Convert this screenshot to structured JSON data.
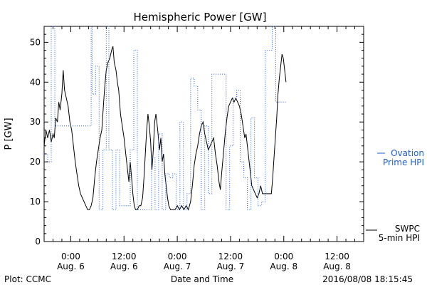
{
  "chart_data": {
    "type": "line",
    "title": "Hemispheric Power [GW]",
    "xlabel": "Date and Time",
    "ylabel": "P [GW]",
    "x_unit": "hours since 2016-08-05 18:00 UTC",
    "xlim": [
      0,
      72
    ],
    "ylim": [
      0,
      54
    ],
    "yticks": [
      0,
      10,
      20,
      30,
      40,
      50
    ],
    "xticks": [
      {
        "x": 6,
        "time": "0:00",
        "date": "Aug. 6"
      },
      {
        "x": 18,
        "time": "12:00",
        "date": "Aug. 6"
      },
      {
        "x": 30,
        "time": "0:00",
        "date": "Aug. 7"
      },
      {
        "x": 42,
        "time": "12:00",
        "date": "Aug. 7"
      },
      {
        "x": 54,
        "time": "0:00",
        "date": "Aug. 8"
      },
      {
        "x": 66,
        "time": "12:00",
        "date": "Aug. 8"
      }
    ],
    "series": [
      {
        "name": "SWPC 5-min HPI",
        "legend_lines": [
          "SWPC",
          "5-min HPI"
        ],
        "color": "#000000",
        "style": "solid",
        "points": [
          [
            0,
            24
          ],
          [
            0.4,
            28
          ],
          [
            0.8,
            26
          ],
          [
            1.2,
            28
          ],
          [
            1.6,
            25
          ],
          [
            2,
            27
          ],
          [
            2.3,
            26
          ],
          [
            2.6,
            31
          ],
          [
            3.0,
            30
          ],
          [
            3.3,
            35
          ],
          [
            3.6,
            33
          ],
          [
            4.0,
            37
          ],
          [
            4.3,
            43
          ],
          [
            4.6,
            38
          ],
          [
            5.0,
            36
          ],
          [
            5.4,
            34
          ],
          [
            5.8,
            30
          ],
          [
            6.2,
            28
          ],
          [
            6.6,
            24
          ],
          [
            7.0,
            20
          ],
          [
            7.4,
            17
          ],
          [
            7.8,
            14
          ],
          [
            8.2,
            12
          ],
          [
            8.6,
            11
          ],
          [
            9.0,
            10
          ],
          [
            9.4,
            9
          ],
          [
            9.8,
            8
          ],
          [
            10.2,
            8
          ],
          [
            10.6,
            9
          ],
          [
            11.0,
            11
          ],
          [
            11.4,
            16
          ],
          [
            11.8,
            20
          ],
          [
            12.2,
            23
          ],
          [
            12.6,
            26
          ],
          [
            13.0,
            28
          ],
          [
            13.3,
            33
          ],
          [
            13.6,
            38
          ],
          [
            14.0,
            43
          ],
          [
            14.4,
            45
          ],
          [
            14.8,
            46
          ],
          [
            15.2,
            48
          ],
          [
            15.5,
            49
          ],
          [
            15.8,
            45
          ],
          [
            16.2,
            43
          ],
          [
            16.5,
            40
          ],
          [
            16.8,
            38
          ],
          [
            17.2,
            32
          ],
          [
            17.6,
            29
          ],
          [
            18.0,
            26
          ],
          [
            18.4,
            22
          ],
          [
            18.8,
            18
          ],
          [
            19.1,
            15
          ],
          [
            19.4,
            20
          ],
          [
            19.7,
            16
          ],
          [
            20.0,
            12
          ],
          [
            20.3,
            9
          ],
          [
            20.6,
            8
          ],
          [
            21.0,
            8
          ],
          [
            21.4,
            9
          ],
          [
            21.8,
            9
          ],
          [
            22.2,
            11
          ],
          [
            22.5,
            16
          ],
          [
            22.8,
            22
          ],
          [
            23.1,
            28
          ],
          [
            23.4,
            32
          ],
          [
            23.7,
            29
          ],
          [
            24.0,
            25
          ],
          [
            24.3,
            18
          ],
          [
            24.6,
            23
          ],
          [
            24.9,
            30
          ],
          [
            25.2,
            32
          ],
          [
            25.6,
            28
          ],
          [
            26.0,
            23
          ],
          [
            26.3,
            26
          ],
          [
            26.6,
            20
          ],
          [
            26.9,
            22
          ],
          [
            27.2,
            17
          ],
          [
            27.5,
            14
          ],
          [
            27.8,
            11
          ],
          [
            28.1,
            9
          ],
          [
            28.5,
            8
          ],
          [
            29.0,
            8
          ],
          [
            29.5,
            8
          ],
          [
            30.0,
            9
          ],
          [
            30.5,
            8
          ],
          [
            31.0,
            9
          ],
          [
            31.5,
            8
          ],
          [
            32.0,
            9
          ],
          [
            32.5,
            8
          ],
          [
            33.0,
            10
          ],
          [
            33.4,
            14
          ],
          [
            33.8,
            19
          ],
          [
            34.2,
            22
          ],
          [
            34.6,
            24
          ],
          [
            35.0,
            27
          ],
          [
            35.4,
            29
          ],
          [
            35.8,
            30
          ],
          [
            36.2,
            27
          ],
          [
            36.6,
            25
          ],
          [
            37.0,
            23
          ],
          [
            37.4,
            24
          ],
          [
            37.8,
            25
          ],
          [
            38.2,
            26
          ],
          [
            38.6,
            22
          ],
          [
            39.0,
            19
          ],
          [
            39.4,
            15
          ],
          [
            39.7,
            13
          ],
          [
            40.0,
            17
          ],
          [
            40.4,
            22
          ],
          [
            40.8,
            27
          ],
          [
            41.2,
            31
          ],
          [
            41.6,
            34
          ],
          [
            42.0,
            35
          ],
          [
            42.4,
            36
          ],
          [
            42.8,
            35
          ],
          [
            43.2,
            36
          ],
          [
            43.6,
            35
          ],
          [
            44.0,
            34
          ],
          [
            44.4,
            32
          ],
          [
            44.8,
            29
          ],
          [
            45.2,
            26
          ],
          [
            45.5,
            27
          ],
          [
            45.8,
            24
          ],
          [
            46.2,
            20
          ],
          [
            46.5,
            17
          ],
          [
            46.8,
            14
          ],
          [
            47.2,
            13
          ],
          [
            47.6,
            12
          ],
          [
            48.0,
            11
          ],
          [
            48.4,
            12
          ],
          [
            48.8,
            14
          ],
          [
            49.2,
            12
          ],
          [
            49.6,
            12
          ],
          [
            50.0,
            12
          ],
          [
            50.4,
            12
          ],
          [
            50.8,
            12
          ],
          [
            51.2,
            12
          ],
          [
            51.5,
            16
          ],
          [
            51.8,
            21
          ],
          [
            52.1,
            26
          ],
          [
            52.4,
            31
          ],
          [
            52.7,
            37
          ],
          [
            53.0,
            41
          ],
          [
            53.3,
            44
          ],
          [
            53.6,
            47
          ],
          [
            53.9,
            46
          ],
          [
            54.2,
            43
          ],
          [
            54.5,
            40
          ]
        ]
      },
      {
        "name": "Ovation Prime HPI",
        "legend_lines": [
          "Ovation",
          "Prime HPI"
        ],
        "color": "#1f5fd0",
        "style": "dotted-steps",
        "points": [
          [
            0,
            22
          ],
          [
            0.8,
            20
          ],
          [
            1.6,
            54
          ],
          [
            2.4,
            29
          ],
          [
            5.6,
            29
          ],
          [
            10.6,
            54
          ],
          [
            10.8,
            37
          ],
          [
            11.6,
            44
          ],
          [
            12.4,
            8
          ],
          [
            13.2,
            23
          ],
          [
            14.0,
            54
          ],
          [
            14.6,
            23
          ],
          [
            15.4,
            8
          ],
          [
            16.2,
            23
          ],
          [
            17.0,
            9
          ],
          [
            17.8,
            9
          ],
          [
            18.6,
            9
          ],
          [
            19.4,
            23
          ],
          [
            20.2,
            48
          ],
          [
            21.0,
            8
          ],
          [
            21.8,
            8
          ],
          [
            22.6,
            8
          ],
          [
            23.4,
            8
          ],
          [
            24.2,
            21
          ],
          [
            25.0,
            8
          ],
          [
            25.8,
            27
          ],
          [
            26.6,
            8
          ],
          [
            27.4,
            17
          ],
          [
            28.2,
            16
          ],
          [
            29.0,
            17
          ],
          [
            29.8,
            8
          ],
          [
            30.6,
            30
          ],
          [
            31.4,
            8
          ],
          [
            32.2,
            12
          ],
          [
            33.0,
            41
          ],
          [
            33.8,
            39
          ],
          [
            34.6,
            33
          ],
          [
            35.4,
            8
          ],
          [
            36.2,
            29
          ],
          [
            37.0,
            12
          ],
          [
            37.8,
            42
          ],
          [
            39.4,
            42
          ],
          [
            41.0,
            8
          ],
          [
            41.8,
            24
          ],
          [
            42.6,
            36
          ],
          [
            43.4,
            38
          ],
          [
            44.2,
            20
          ],
          [
            45.0,
            16
          ],
          [
            45.8,
            8
          ],
          [
            46.6,
            31
          ],
          [
            47.4,
            16
          ],
          [
            48.2,
            9
          ],
          [
            49.0,
            10
          ],
          [
            49.8,
            48
          ],
          [
            50.6,
            48
          ],
          [
            51.4,
            54
          ],
          [
            52.2,
            35
          ],
          [
            54.5,
            35
          ]
        ]
      }
    ],
    "footer_left": "Plot: CCMC",
    "timestamp": "2016/08/08 18:15:45"
  }
}
